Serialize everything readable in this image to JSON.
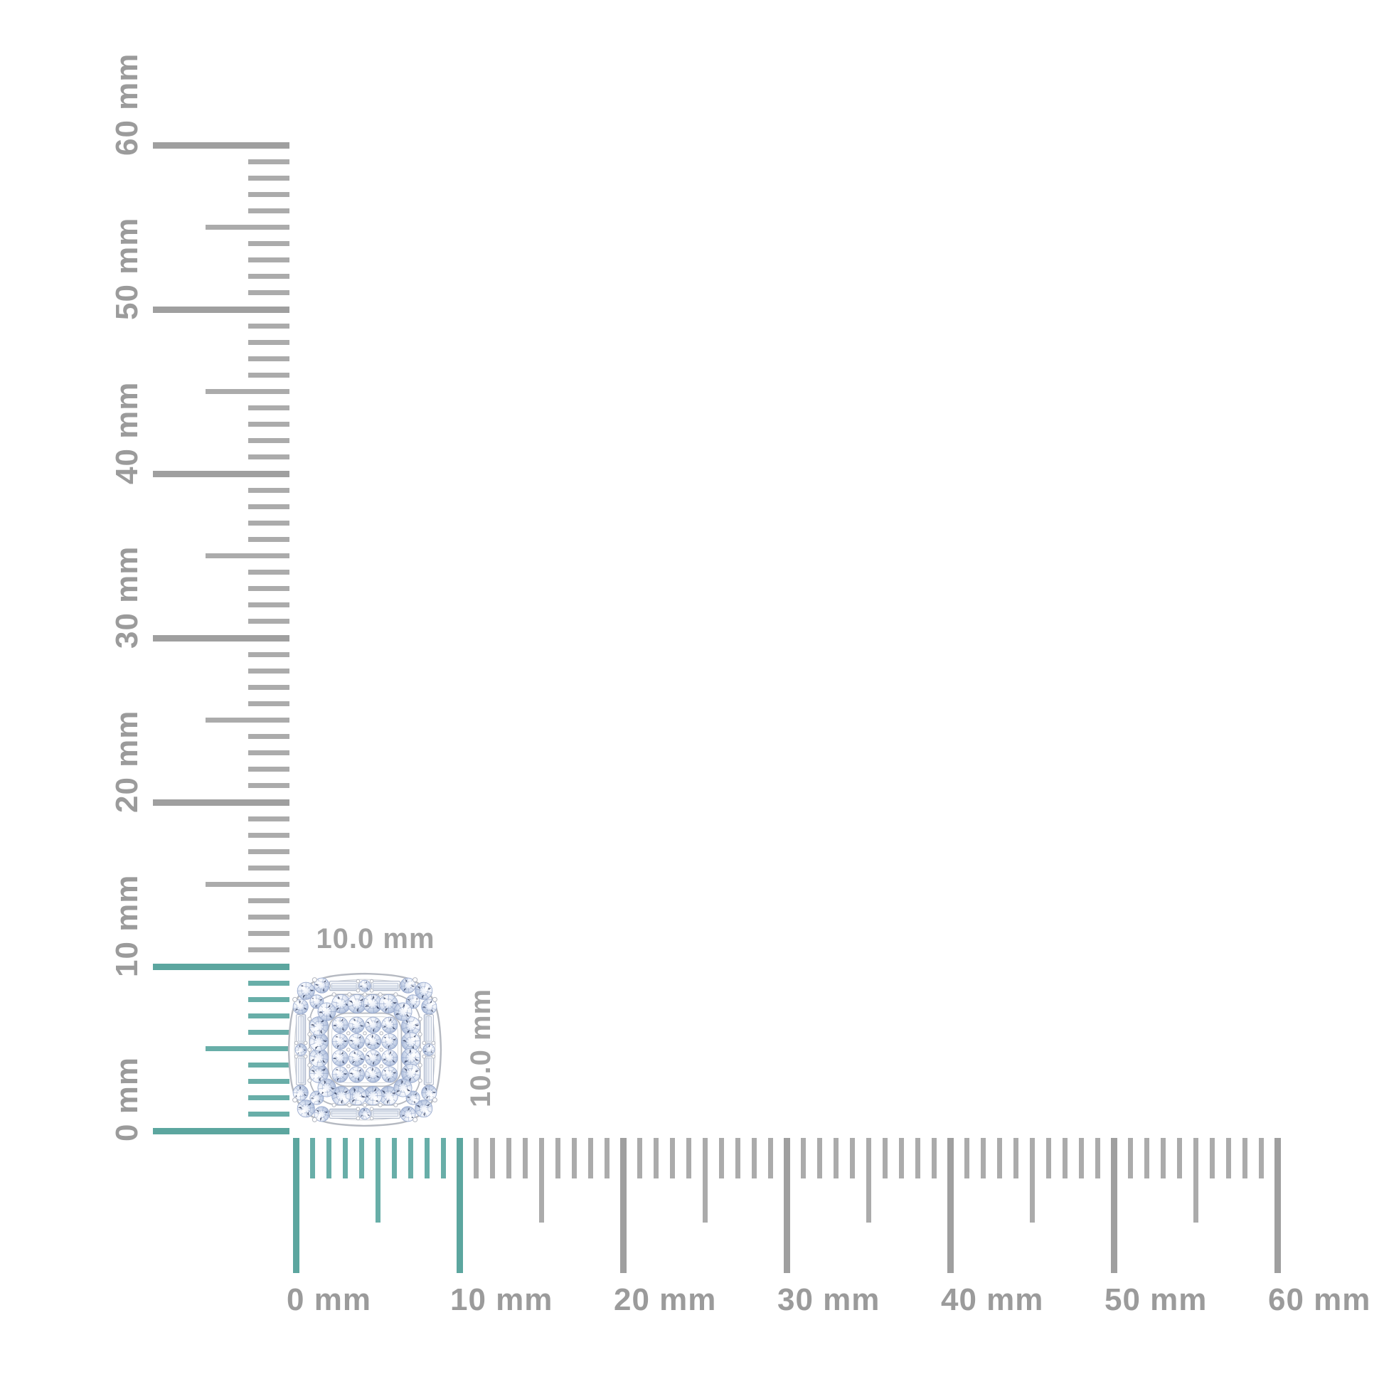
{
  "page": {
    "background": "#ffffff"
  },
  "product": {
    "description": "cushion-shaped diamond cluster stud with baguette and round pave stones",
    "width_label": "10.0 mm",
    "height_label": "10.0 mm"
  },
  "rulers": {
    "unit": "mm",
    "min_mm": 0,
    "max_mm": 60,
    "minor_step_mm": 1,
    "medium_step_mm": 5,
    "major_step_mm": 10,
    "highlight_range_mm": [
      0,
      10
    ],
    "horizontal": {
      "labels": [
        "0 mm",
        "10 mm",
        "20 mm",
        "30 mm",
        "40 mm",
        "50 mm",
        "60 mm"
      ]
    },
    "vertical": {
      "labels": [
        "0 mm",
        "10 mm",
        "20 mm",
        "30 mm",
        "40 mm",
        "50 mm",
        "60 mm"
      ]
    }
  },
  "colors": {
    "tick_gray": "#ababab",
    "tick_gray_major": "#9f9f9f",
    "highlight_teal": "#68aea8",
    "highlight_teal_major": "#5ca69f",
    "label_gray": "#9b9b9b",
    "dim_label_gray": "#a2a2a2",
    "metal": "#b5b9c1",
    "metal_light": "#d6d9de",
    "diamond_light": "#eef2fa",
    "diamond_mid": "#c7d3e8",
    "diamond_deep": "#a4b5d6",
    "stone_stroke": "#96a7cb",
    "facet_line": "#8498c0",
    "speck": "#1f2b4d",
    "prong_fill": "#ffffff",
    "prong_stroke": "#b2b6c0"
  }
}
